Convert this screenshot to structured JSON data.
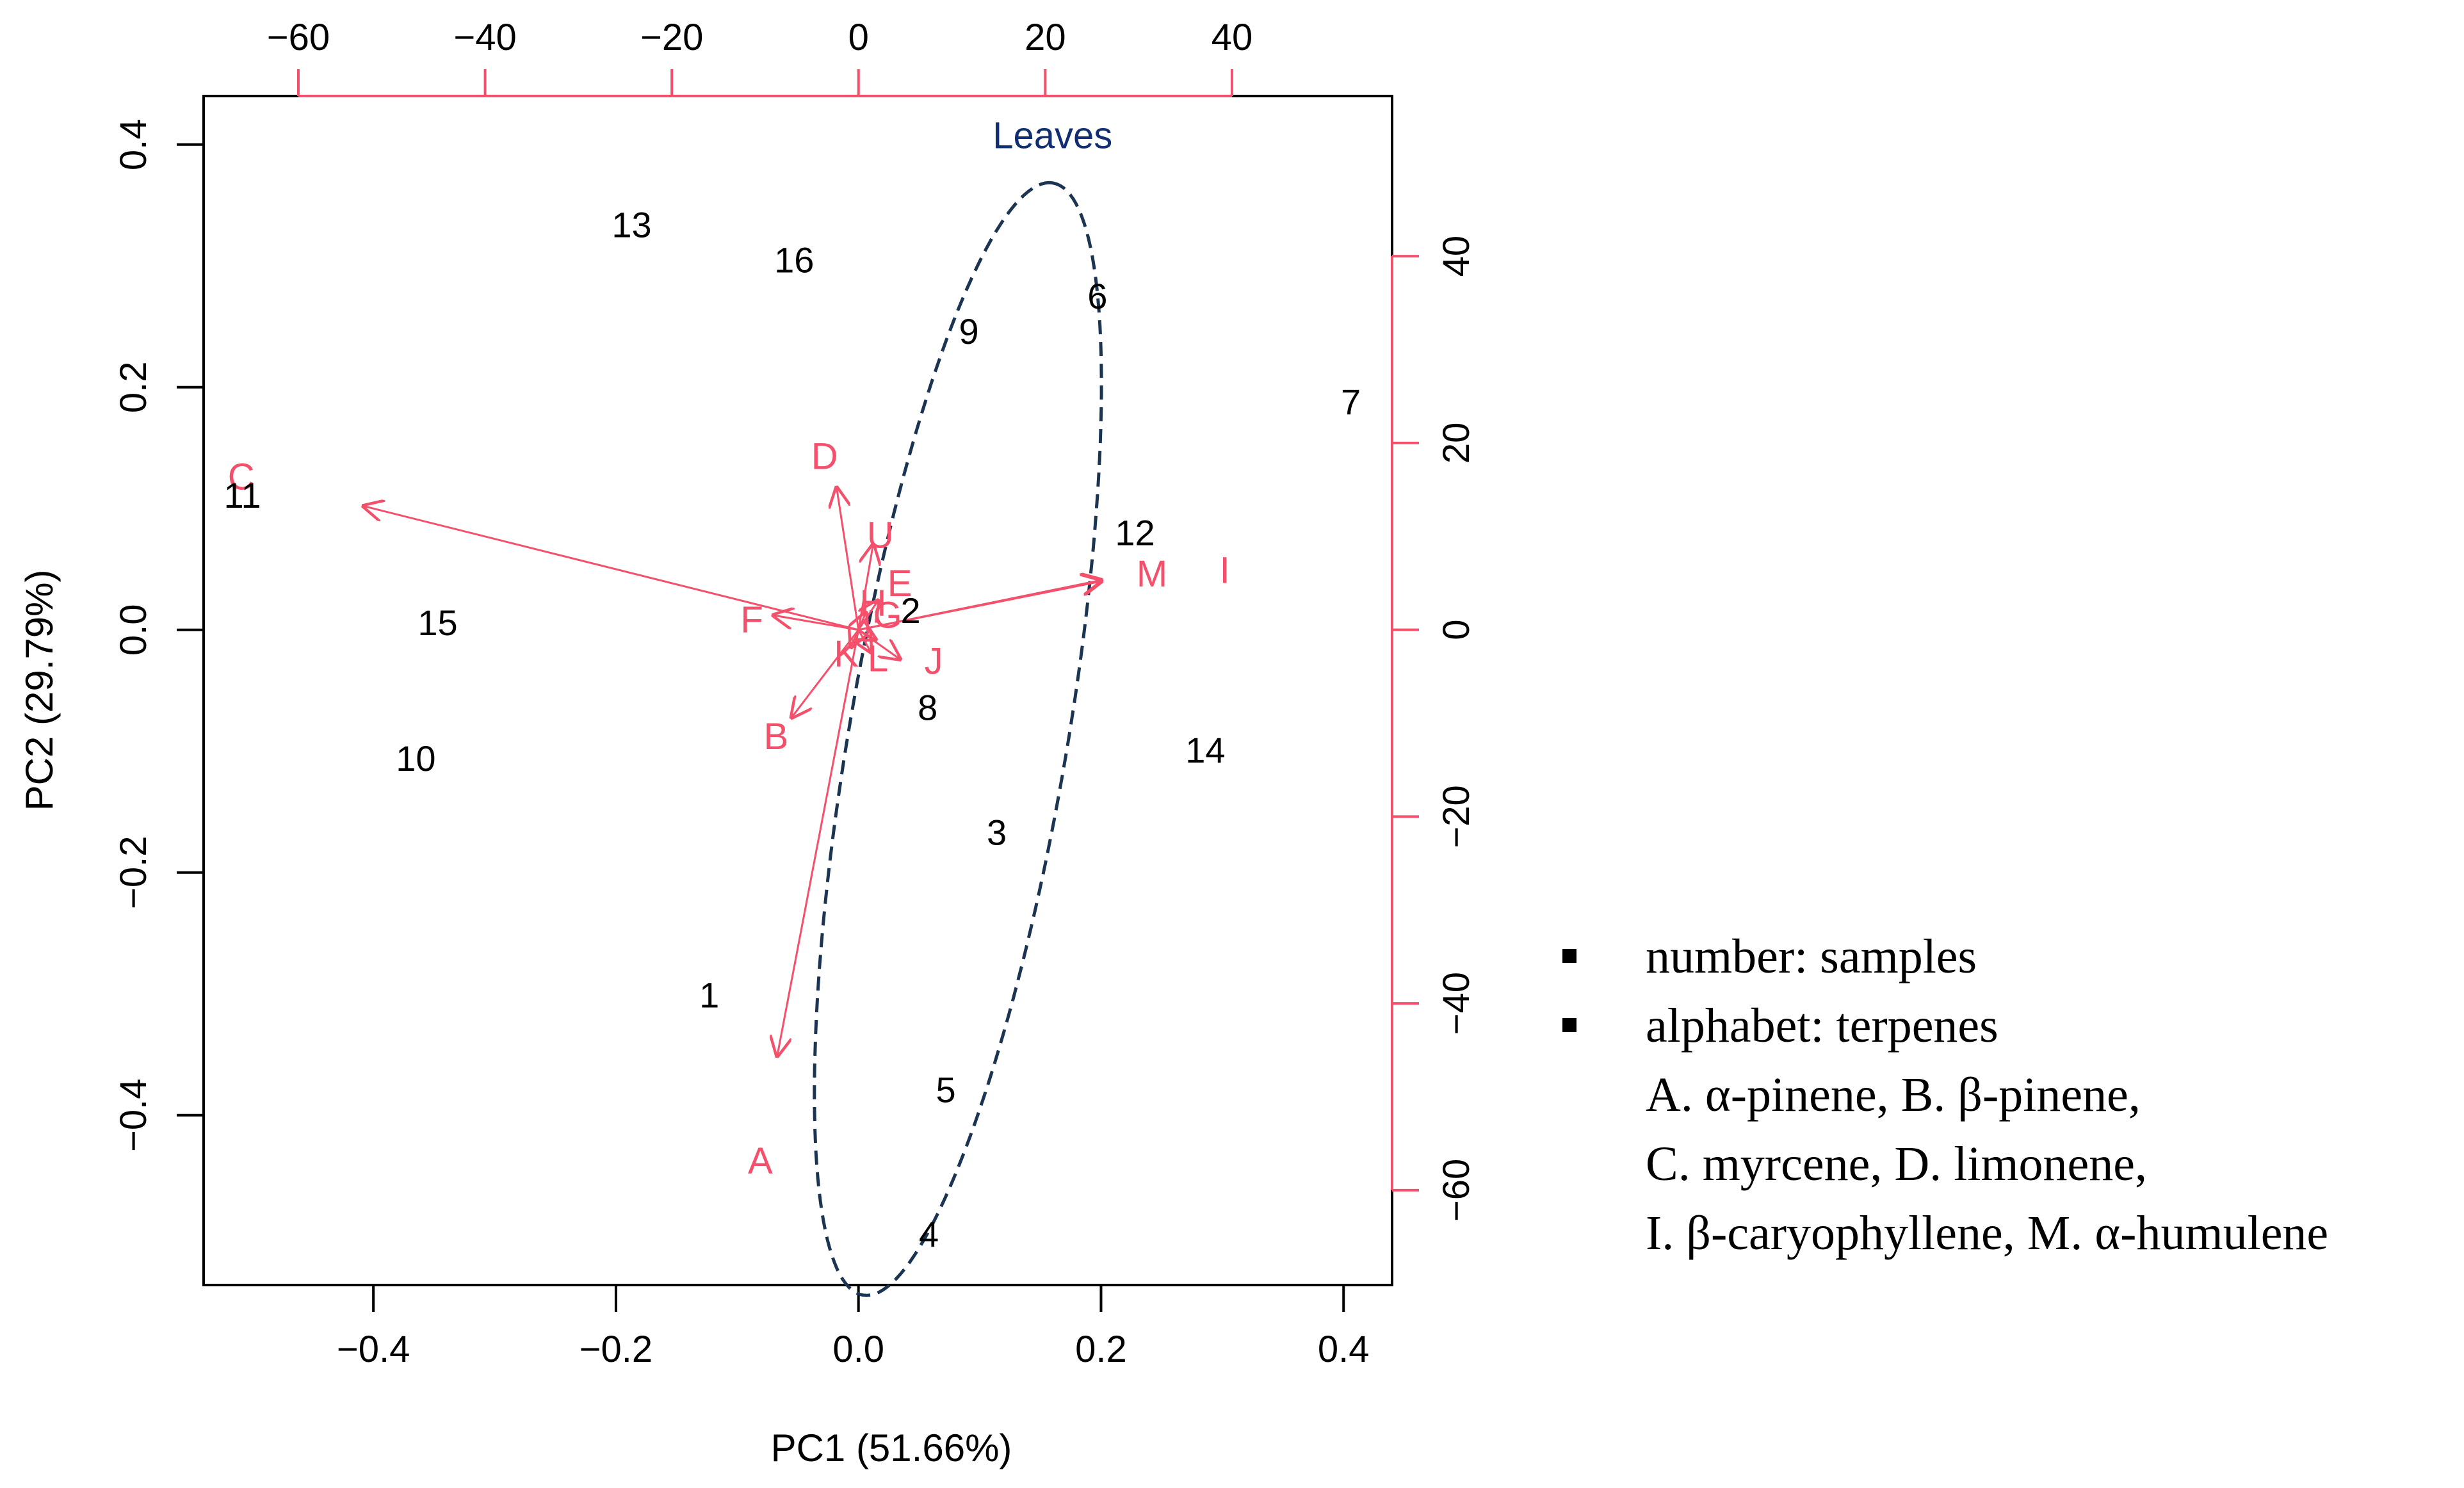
{
  "chart_data": {
    "type": "biplot",
    "title": "",
    "xlabel": "PC1 (51.66%)",
    "ylabel": "PC2 (29.79%)",
    "xlim": [
      -0.54,
      0.44
    ],
    "ylim": [
      -0.54,
      0.44
    ],
    "xticks": [
      "−0.4",
      "−0.2",
      "0.0",
      "0.2",
      "0.4"
    ],
    "xtick_values": [
      -0.4,
      -0.2,
      0.0,
      0.2,
      0.4
    ],
    "yticks": [
      "−0.4",
      "−0.2",
      "0.0",
      "0.2",
      "0.4"
    ],
    "ytick_values": [
      -0.4,
      -0.2,
      0.0,
      0.2,
      0.4
    ],
    "top_axis": {
      "range": [
        -70.15,
        57.15
      ],
      "ticks": [
        "−60",
        "−40",
        "−20",
        "0",
        "20",
        "40"
      ],
      "tick_values": [
        -60,
        -40,
        -20,
        0,
        20,
        40
      ]
    },
    "right_axis": {
      "range": [
        -70.15,
        57.15
      ],
      "ticks": [
        "−60",
        "−40",
        "−20",
        "0",
        "20",
        "40"
      ],
      "tick_values": [
        -60,
        -40,
        -20,
        0,
        20,
        40
      ]
    },
    "samples": [
      {
        "label": "1",
        "x": -0.123,
        "y": -0.301
      },
      {
        "label": "2",
        "x": 0.043,
        "y": 0.016
      },
      {
        "label": "3",
        "x": 0.114,
        "y": -0.167
      },
      {
        "label": "4",
        "x": 0.058,
        "y": -0.498
      },
      {
        "label": "5",
        "x": 0.072,
        "y": -0.379
      },
      {
        "label": "6",
        "x": 0.197,
        "y": 0.275
      },
      {
        "label": "7",
        "x": 0.406,
        "y": 0.188
      },
      {
        "label": "8",
        "x": 0.057,
        "y": -0.064
      },
      {
        "label": "9",
        "x": 0.091,
        "y": 0.246
      },
      {
        "label": "10",
        "x": -0.365,
        "y": -0.106
      },
      {
        "label": "11",
        "x": -0.508,
        "y": 0.111
      },
      {
        "label": "12",
        "x": 0.228,
        "y": 0.08
      },
      {
        "label": "13",
        "x": -0.187,
        "y": 0.334
      },
      {
        "label": "14",
        "x": 0.286,
        "y": -0.099
      },
      {
        "label": "15",
        "x": -0.347,
        "y": 0.006
      },
      {
        "label": "16",
        "x": -0.053,
        "y": 0.305
      }
    ],
    "loadings": [
      {
        "label": "A",
        "x": -0.067,
        "y": -0.351,
        "lx": -0.081,
        "ly": -0.438
      },
      {
        "label": "B",
        "x": -0.055,
        "y": -0.072,
        "lx": -0.068,
        "ly": -0.088
      },
      {
        "label": "C",
        "x": -0.408,
        "y": 0.102,
        "lx": -0.509,
        "ly": 0.126
      },
      {
        "label": "D",
        "x": -0.018,
        "y": 0.117,
        "lx": -0.028,
        "ly": 0.143
      },
      {
        "label": "F",
        "x": -0.07,
        "y": 0.012,
        "lx": -0.088,
        "ly": 0.008
      },
      {
        "label": "I",
        "x": 0.2,
        "y": 0.041,
        "lx": 0.302,
        "ly": 0.049
      },
      {
        "label": "J",
        "x": 0.034,
        "y": -0.024,
        "lx": 0.062,
        "ly": -0.026
      },
      {
        "label": "M",
        "x": 0.2,
        "y": 0.04,
        "lx": 0.242,
        "ly": 0.046
      },
      {
        "label": "U",
        "x": 0.012,
        "y": 0.07,
        "lx": 0.018,
        "ly": 0.078
      },
      {
        "label": "E",
        "x": 0.016,
        "y": 0.024,
        "lx": 0.034,
        "ly": 0.038
      },
      {
        "label": "G",
        "x": 0.014,
        "y": -0.008,
        "lx": 0.024,
        "ly": 0.012
      },
      {
        "label": "H",
        "x": 0.006,
        "y": 0.014,
        "lx": 0.012,
        "ly": 0.022
      },
      {
        "label": "K",
        "x": -0.006,
        "y": -0.014,
        "lx": -0.01,
        "ly": -0.02
      },
      {
        "label": "L",
        "x": 0.01,
        "y": -0.018,
        "lx": 0.016,
        "ly": -0.024
      }
    ],
    "ellipse": {
      "label": "Leaves",
      "label_x": 0.16,
      "label_y": 0.397,
      "center_x": 0.082,
      "center_y": -0.09,
      "semi_major": 0.465,
      "semi_minor": 0.09,
      "angle_deg": 80.3
    },
    "colors": {
      "loading": "#f4506c",
      "top_axis": "#f4506c",
      "ellipse": "#1b3452",
      "ellipse_label": "#112d73",
      "text": "#000000"
    }
  },
  "legend": {
    "items": [
      {
        "text": "number: samples",
        "bullet": true
      },
      {
        "text": "alphabet: terpenes",
        "bullet": true
      },
      {
        "text": "A. α-pinene, B. β-pinene,",
        "bullet": false
      },
      {
        "text": "C. myrcene, D. limonene,",
        "bullet": false
      },
      {
        "text": "I. β-caryophyllene, M. α-humulene",
        "bullet": false
      }
    ]
  }
}
